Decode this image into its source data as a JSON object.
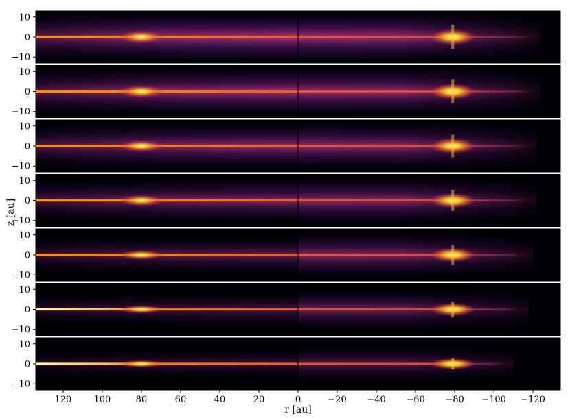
{
  "chart_data": {
    "type": "heatmap",
    "colormap": "inferno",
    "xlabel": "r [au]",
    "ylabel": "z [au]",
    "xlim": [
      134,
      -134
    ],
    "ylim": [
      -13,
      13
    ],
    "x_ticks": [
      120,
      100,
      80,
      60,
      40,
      20,
      0,
      -20,
      -40,
      -60,
      -80,
      -100,
      -120
    ],
    "x_tick_labels": [
      "120",
      "100",
      "80",
      "60",
      "40",
      "20",
      "0",
      "−20",
      "−40",
      "−60",
      "−80",
      "−100",
      "−120"
    ],
    "y_ticks": [
      10,
      0,
      -10
    ],
    "y_tick_labels": [
      "10",
      "0",
      "−10"
    ],
    "panel_count": 7,
    "panels": [
      {
        "index": 1,
        "left_ring_r": 80,
        "right_planet_r": -79,
        "left_thickness": 1.0,
        "right_thickness": 1.0,
        "left_midplane_brightness": 0.55,
        "right_outer_edge": -124
      },
      {
        "index": 2,
        "left_ring_r": 80,
        "right_planet_r": -79,
        "left_thickness": 0.92,
        "right_thickness": 0.95,
        "left_midplane_brightness": 0.6,
        "right_outer_edge": -124
      },
      {
        "index": 3,
        "left_ring_r": 80,
        "right_planet_r": -79,
        "left_thickness": 0.85,
        "right_thickness": 0.9,
        "left_midplane_brightness": 0.65,
        "right_outer_edge": -122
      },
      {
        "index": 4,
        "left_ring_r": 80,
        "right_planet_r": -79,
        "left_thickness": 0.75,
        "right_thickness": 0.85,
        "left_midplane_brightness": 0.72,
        "right_outer_edge": -122
      },
      {
        "index": 5,
        "left_ring_r": 80,
        "right_planet_r": -79,
        "left_thickness": 0.55,
        "right_thickness": 0.8,
        "left_midplane_brightness": 0.82,
        "right_outer_edge": -120
      },
      {
        "index": 6,
        "left_ring_r": 80,
        "right_planet_r": -79,
        "left_thickness": 0.4,
        "right_thickness": 0.65,
        "left_midplane_brightness": 0.9,
        "right_outer_edge": -118
      },
      {
        "index": 7,
        "left_ring_r": 80,
        "right_planet_r": -79,
        "left_thickness": 0.28,
        "right_thickness": 0.45,
        "left_midplane_brightness": 1.0,
        "right_outer_edge": -110
      }
    ]
  }
}
